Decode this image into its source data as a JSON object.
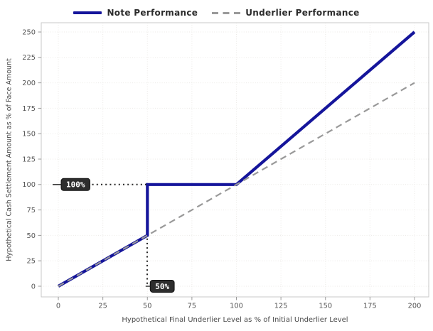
{
  "chart_data": {
    "type": "line",
    "title": "",
    "xlabel": "Hypothetical Final Underlier Level as % of Initial Underlier Level",
    "ylabel": "Hypothetical Cash Settlement Amount as % of Face Amount",
    "xlim": [
      -9.6,
      208
    ],
    "ylim": [
      -10.5,
      259.1
    ],
    "xticks": [
      0,
      25,
      50,
      75,
      100,
      125,
      150,
      175,
      200
    ],
    "yticks": [
      0,
      25,
      50,
      75,
      100,
      125,
      150,
      175,
      200,
      225,
      250
    ],
    "grid": true,
    "legend_position": "top-center",
    "series": [
      {
        "name": "Note Performance",
        "color": "#15159b",
        "style": "solid",
        "width": 4.2,
        "points": [
          [
            0,
            0
          ],
          [
            50,
            50
          ],
          [
            50,
            100
          ],
          [
            100,
            100
          ],
          [
            200,
            250
          ]
        ]
      },
      {
        "name": "Underlier Performance",
        "color": "#999999",
        "style": "dashed",
        "width": 2.2,
        "points": [
          [
            0,
            0
          ],
          [
            200,
            200
          ]
        ]
      }
    ],
    "annotations": [
      {
        "text": "100%",
        "attach": {
          "x": 0,
          "y": 100
        },
        "leader_solid": [
          [
            -3.2,
            100
          ],
          [
            1.6,
            100
          ]
        ],
        "leader_dotted": [
          [
            19,
            100
          ],
          [
            49.8,
            100
          ]
        ]
      },
      {
        "text": "50%",
        "attach": {
          "x": 50,
          "y": 0
        },
        "leader_solid": [
          [
            49.0,
            0
          ],
          [
            51.6,
            0
          ]
        ],
        "leader_dotted": [
          [
            49.9,
            47
          ],
          [
            49.9,
            0.3
          ]
        ]
      }
    ],
    "colors": {
      "background": "#ffffff",
      "grid": "#eceae7",
      "frame": "#c9c9c9",
      "tick": "#999999",
      "tick_label": "#555555",
      "axis_label": "#4a4a4a",
      "legend_text": "#2b2b2b",
      "annotation_bg": "#2d2d2d",
      "annotation_border": "#111111",
      "annotation_text": "#ffffff",
      "leader": "#262626"
    }
  }
}
